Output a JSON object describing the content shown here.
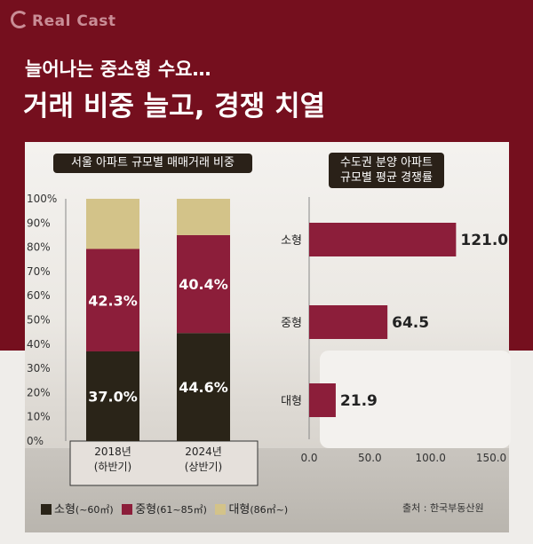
{
  "brand": "Real Cast",
  "headline_line1": "늘어나는 중소형 수요…",
  "headline_line2": "거래 비중 늘고, 경쟁 치열",
  "source": "출처 : 한국부동산원",
  "colors": {
    "small": "#2a2418",
    "medium": "#8c1e3a",
    "large": "#d3c389",
    "header_band": "#750f1e"
  },
  "legend": [
    {
      "label": "소형",
      "note": "(~60㎡)"
    },
    {
      "label": "중형",
      "note": "(61~85㎡)"
    },
    {
      "label": "대형",
      "note": "(86㎡~)"
    }
  ],
  "chart_data": [
    {
      "type": "bar",
      "stacked": true,
      "title": "서울 아파트 규모별 매매거래 비중",
      "categories": [
        "2018년\n(하반기)",
        "2024년\n(상반기)"
      ],
      "category_lines": [
        [
          "2018년",
          "(하반기)"
        ],
        [
          "2024년",
          "(상반기)"
        ]
      ],
      "series": [
        {
          "name": "소형",
          "values": [
            37.0,
            44.6
          ],
          "labels": [
            "37.0%",
            "44.6%"
          ]
        },
        {
          "name": "중형",
          "values": [
            42.3,
            40.4
          ],
          "labels": [
            "42.3%",
            "40.4%"
          ]
        },
        {
          "name": "대형",
          "values": [
            20.7,
            15.0
          ],
          "labels": [
            "",
            ""
          ]
        }
      ],
      "ylim": [
        0,
        100
      ],
      "yticks": [
        "0%",
        "10%",
        "20%",
        "30%",
        "40%",
        "50%",
        "60%",
        "70%",
        "80%",
        "90%",
        "100%"
      ],
      "grid": false
    },
    {
      "type": "bar",
      "orientation": "horizontal",
      "title_lines": [
        "수도권 분양 아파트",
        "규모별 평균 경쟁률"
      ],
      "categories": [
        "소형",
        "중형",
        "대형"
      ],
      "values": [
        121.0,
        64.5,
        21.9
      ],
      "value_labels": [
        "121.0",
        "64.5",
        "21.9"
      ],
      "xlim": [
        0,
        150
      ],
      "xticks": [
        "0.0",
        "50.0",
        "100.0",
        "150.0"
      ],
      "grid": false
    }
  ]
}
